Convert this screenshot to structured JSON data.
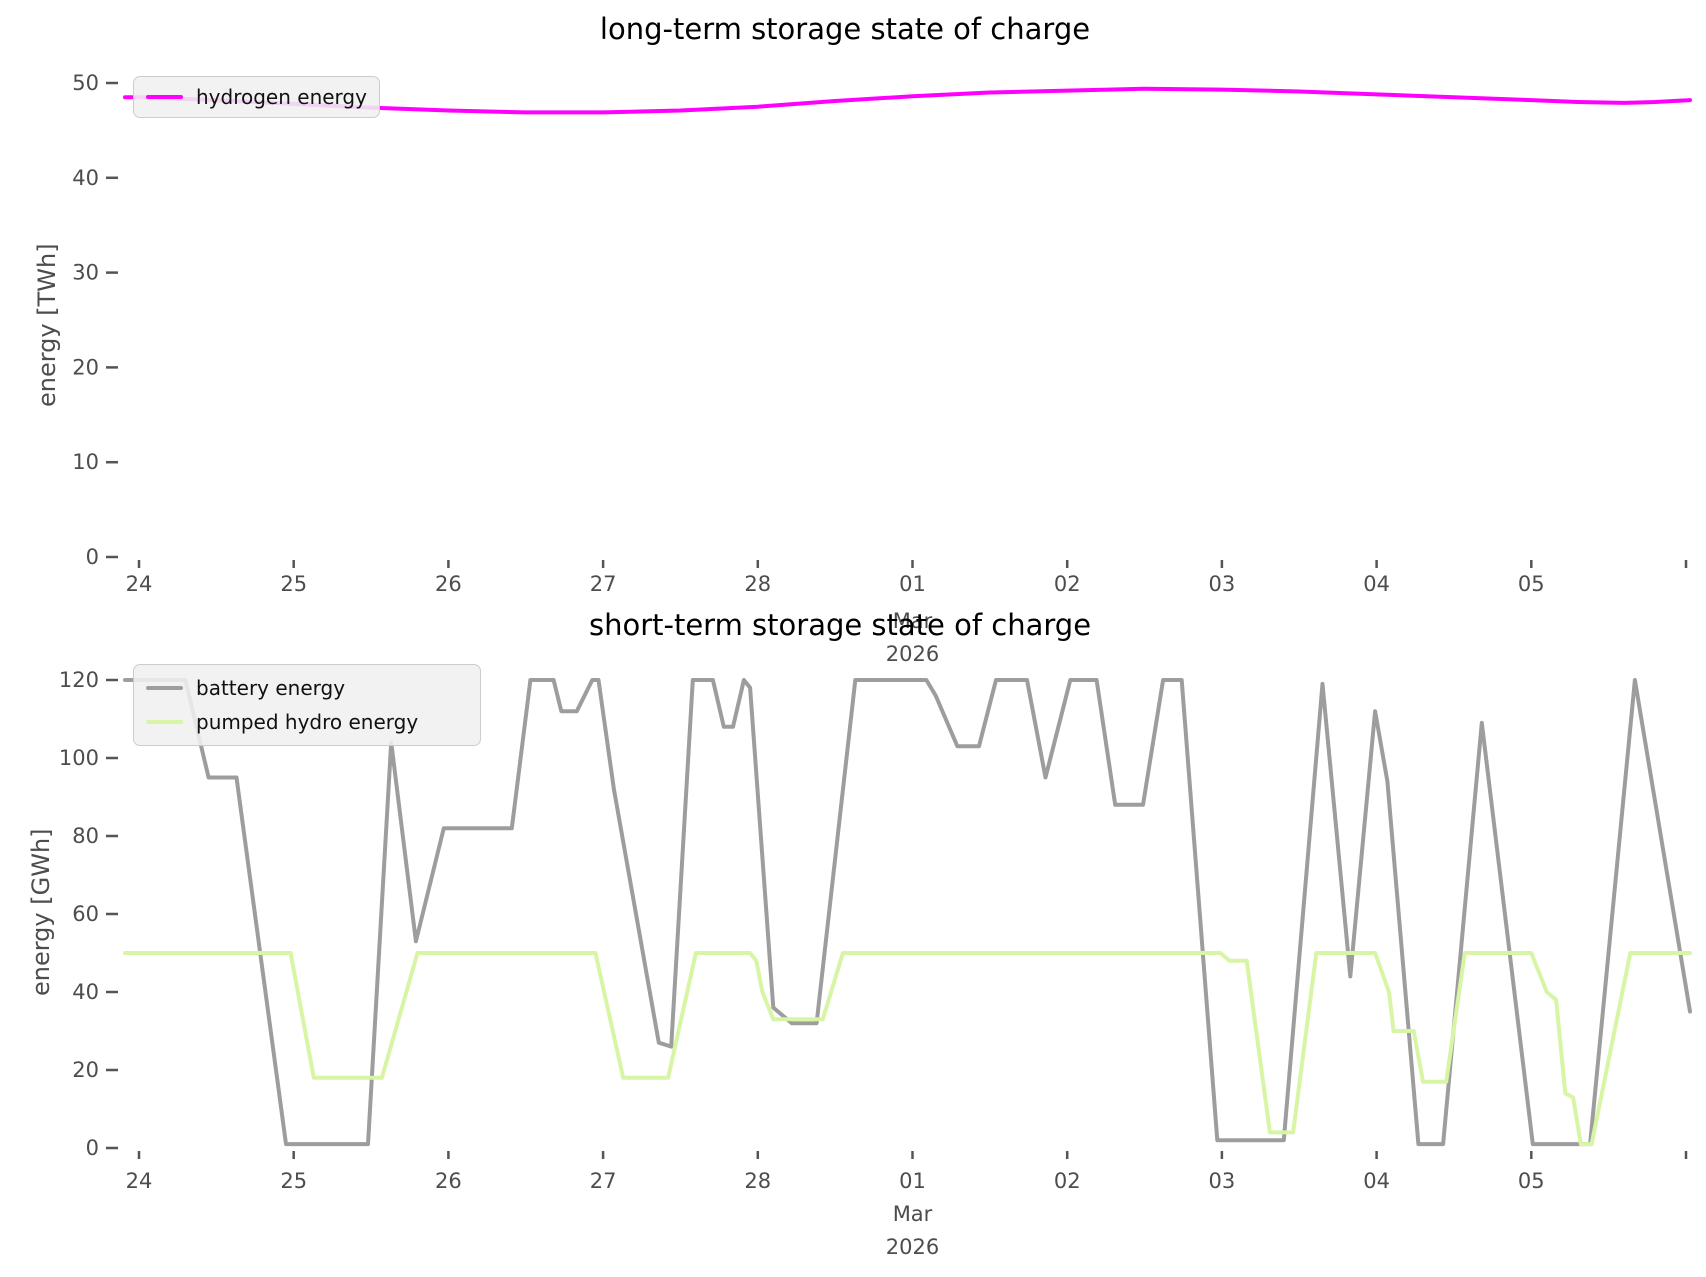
{
  "figure_background": "#ffffff",
  "chart_data": [
    {
      "type": "line",
      "title": "long-term storage state of charge",
      "xlabel": "",
      "ylabel": "energy [TWh]",
      "ylim": [
        0,
        50
      ],
      "yticks": [
        0,
        10,
        20,
        30,
        40,
        50
      ],
      "grid": false,
      "legend_position": "upper left",
      "x_axis_note": "x in days, 0 = Feb 24; ticks are calendar days Feb 24 - Mar 05",
      "xticks": [
        {
          "t": 0,
          "label": "24"
        },
        {
          "t": 1,
          "label": "25"
        },
        {
          "t": 2,
          "label": "26"
        },
        {
          "t": 3,
          "label": "27"
        },
        {
          "t": 4,
          "label": "28"
        },
        {
          "t": 5,
          "label": "01",
          "month": "Mar",
          "year": "2026"
        },
        {
          "t": 6,
          "label": "02"
        },
        {
          "t": 7,
          "label": "03"
        },
        {
          "t": 8,
          "label": "04"
        },
        {
          "t": 9,
          "label": "05"
        },
        {
          "t": 10,
          "label": ""
        }
      ],
      "series": [
        {
          "name": "hydrogen energy",
          "color": "#ff00ff",
          "x": [
            0,
            0.5,
            1,
            1.5,
            2,
            2.5,
            3,
            3.5,
            4,
            4.5,
            5,
            5.5,
            6,
            6.5,
            7,
            7.5,
            8,
            8.5,
            9,
            9.3,
            9.6,
            9.8,
            10.03
          ],
          "y": [
            48.5,
            48.2,
            47.8,
            47.4,
            47.1,
            46.9,
            46.9,
            47.1,
            47.5,
            48.1,
            48.6,
            49.0,
            49.2,
            49.4,
            49.3,
            49.1,
            48.8,
            48.5,
            48.2,
            48.0,
            47.9,
            48.0,
            48.2
          ]
        }
      ]
    },
    {
      "type": "line",
      "title": "short-term storage state of charge",
      "xlabel": "",
      "ylabel": "energy [GWh]",
      "ylim": [
        0,
        120
      ],
      "yticks": [
        0,
        20,
        40,
        60,
        80,
        100,
        120
      ],
      "grid": false,
      "legend_position": "upper left",
      "x_axis_note": "x in days, 0 = Feb 24; ticks are calendar days Feb 24 - Mar 05",
      "xticks": [
        {
          "t": 0,
          "label": "24"
        },
        {
          "t": 1,
          "label": "25"
        },
        {
          "t": 2,
          "label": "26"
        },
        {
          "t": 3,
          "label": "27"
        },
        {
          "t": 4,
          "label": "28"
        },
        {
          "t": 5,
          "label": "01",
          "month": "Mar",
          "year": "2026"
        },
        {
          "t": 6,
          "label": "02"
        },
        {
          "t": 7,
          "label": "03"
        },
        {
          "t": 8,
          "label": "04"
        },
        {
          "t": 9,
          "label": "05"
        },
        {
          "t": 10,
          "label": ""
        }
      ],
      "series": [
        {
          "name": "battery energy",
          "color": "#9d9d9d",
          "x": [
            0,
            0.3,
            0.45,
            0.63,
            0.95,
            1.48,
            1.63,
            1.79,
            1.97,
            2.41,
            2.53,
            2.68,
            2.73,
            2.83,
            2.93,
            2.97,
            3.07,
            3.36,
            3.44,
            3.58,
            3.71,
            3.78,
            3.84,
            3.91,
            3.95,
            4.1,
            4.22,
            4.38,
            4.63,
            5.09,
            5.15,
            5.29,
            5.43,
            5.54,
            5.74,
            5.86,
            6.02,
            6.19,
            6.31,
            6.49,
            6.62,
            6.74,
            6.97,
            7.4,
            7.65,
            7.83,
            7.99,
            8.07,
            8.27,
            8.43,
            8.68,
            9.01,
            9.38,
            9.67,
            10.03
          ],
          "y": [
            120,
            120,
            95,
            95,
            1,
            1,
            104,
            53,
            82,
            82,
            120,
            120,
            112,
            112,
            120,
            120,
            92,
            27,
            26,
            120,
            120,
            108,
            108,
            120,
            118,
            36,
            32,
            32,
            120,
            120,
            116,
            103,
            103,
            120,
            120,
            95,
            120,
            120,
            88,
            88,
            120,
            120,
            2,
            2,
            119,
            44,
            112,
            94,
            1,
            1,
            109,
            1,
            1,
            120,
            35
          ]
        },
        {
          "name": "pumped hydro energy",
          "color": "#d7f5a5",
          "x": [
            0,
            0.98,
            1.13,
            1.57,
            1.8,
            2.95,
            3.13,
            3.42,
            3.6,
            3.95,
            3.99,
            4.03,
            4.1,
            4.42,
            4.55,
            6.99,
            7.05,
            7.16,
            7.31,
            7.46,
            7.61,
            7.99,
            8.08,
            8.11,
            8.24,
            8.3,
            8.45,
            8.57,
            9.0,
            9.1,
            9.16,
            9.22,
            9.27,
            9.32,
            9.39,
            9.64,
            10.03
          ],
          "y": [
            50,
            50,
            18,
            18,
            50,
            50,
            18,
            18,
            50,
            50,
            48,
            40,
            33,
            33,
            50,
            50,
            48,
            48,
            4,
            4,
            50,
            50,
            40,
            30,
            30,
            17,
            17,
            50,
            50,
            40,
            38,
            14,
            13,
            1,
            1,
            50,
            50
          ]
        }
      ]
    }
  ]
}
